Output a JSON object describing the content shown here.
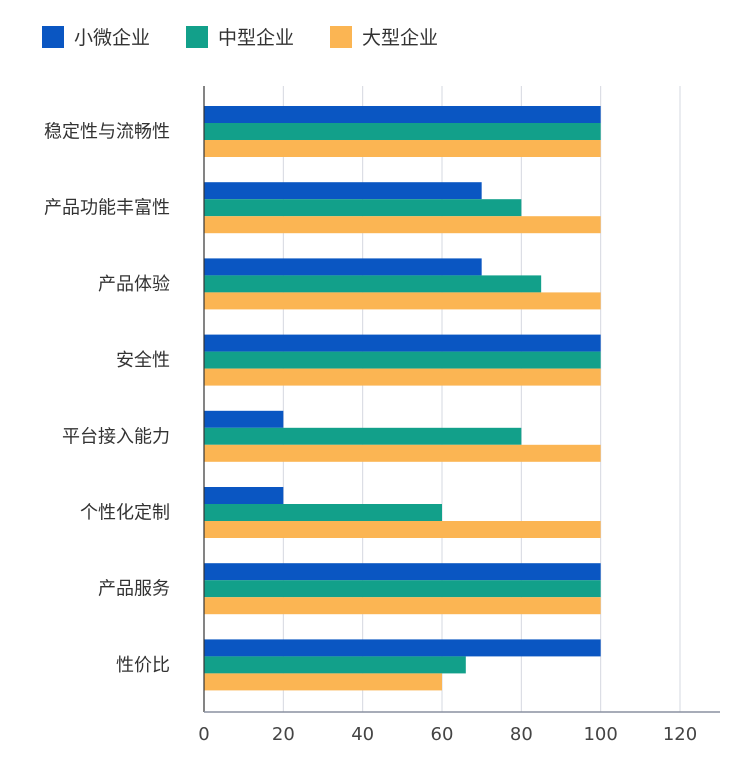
{
  "chart_data": {
    "type": "bar",
    "orientation": "horizontal",
    "categories": [
      "稳定性与流畅性",
      "产品功能丰富性",
      "产品体验",
      "安全性",
      "平台接入能力",
      "个性化定制",
      "产品服务",
      "性价比"
    ],
    "series": [
      {
        "name": "小微企业",
        "color": "#0a56c2",
        "values": [
          100,
          70,
          70,
          100,
          20,
          20,
          100,
          100
        ]
      },
      {
        "name": "中型企业",
        "color": "#12a08a",
        "values": [
          100,
          80,
          85,
          100,
          80,
          60,
          100,
          66
        ]
      },
      {
        "name": "大型企业",
        "color": "#fbb553",
        "values": [
          100,
          100,
          100,
          100,
          100,
          100,
          100,
          60
        ]
      }
    ],
    "xlim": [
      0,
      130
    ],
    "xticks": [
      "0",
      "20",
      "40",
      "60",
      "80",
      "100",
      "120"
    ],
    "grid": true,
    "legend": "top-left"
  }
}
